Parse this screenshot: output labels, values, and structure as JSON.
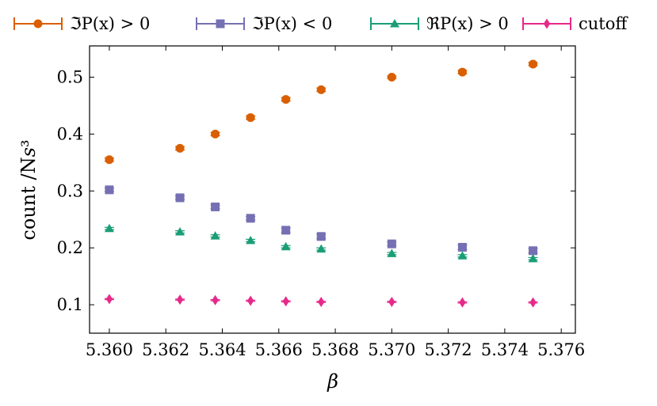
{
  "chart_data": {
    "type": "scatter",
    "xlabel": "β",
    "ylabel": "count /N_s^3",
    "xlim": [
      5.3593,
      5.3765
    ],
    "ylim": [
      0.05,
      0.555
    ],
    "x_ticks": [
      "5.360",
      "5.362",
      "5.364",
      "5.366",
      "5.368",
      "5.370",
      "5.372",
      "5.374",
      "5.376"
    ],
    "x_tick_values": [
      5.36,
      5.362,
      5.364,
      5.366,
      5.368,
      5.37,
      5.372,
      5.374,
      5.376
    ],
    "y_ticks": [
      "0.1",
      "0.2",
      "0.3",
      "0.4",
      "0.5"
    ],
    "y_tick_values": [
      0.1,
      0.2,
      0.3,
      0.4,
      0.5
    ],
    "legend_position": "top",
    "grid": false,
    "x": [
      5.36,
      5.3625,
      5.36375,
      5.365,
      5.36625,
      5.3675,
      5.37,
      5.3725,
      5.375
    ],
    "series": [
      {
        "name": "ℑP(x) > 0",
        "color": "#d95f02",
        "marker": "circle",
        "values": [
          0.355,
          0.375,
          0.4,
          0.429,
          0.461,
          0.478,
          0.5,
          0.509,
          0.523
        ],
        "errors": [
          0.003,
          0.003,
          0.003,
          0.003,
          0.003,
          0.003,
          0.002,
          0.003,
          0.003
        ]
      },
      {
        "name": "ℑP(x) < 0",
        "color": "#7570b3",
        "marker": "square",
        "values": [
          0.302,
          0.288,
          0.272,
          0.252,
          0.231,
          0.22,
          0.207,
          0.201,
          0.195
        ],
        "errors": [
          0.003,
          0.003,
          0.003,
          0.003,
          0.004,
          0.004,
          0.003,
          0.004,
          0.004
        ]
      },
      {
        "name": "ℜP(x) > 0",
        "color": "#1b9e77",
        "marker": "triangle",
        "values": [
          0.234,
          0.228,
          0.221,
          0.213,
          0.202,
          0.198,
          0.19,
          0.186,
          0.181
        ],
        "errors": [
          0.002,
          0.002,
          0.002,
          0.002,
          0.002,
          0.002,
          0.002,
          0.002,
          0.002
        ]
      },
      {
        "name": "cutoff",
        "color": "#e7298a",
        "marker": "diamond",
        "values": [
          0.11,
          0.109,
          0.108,
          0.107,
          0.106,
          0.105,
          0.105,
          0.104,
          0.104
        ],
        "errors": [
          0.001,
          0.001,
          0.001,
          0.001,
          0.001,
          0.001,
          0.001,
          0.001,
          0.001
        ]
      }
    ]
  }
}
